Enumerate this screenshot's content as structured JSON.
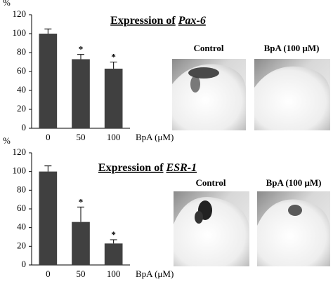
{
  "chart_data": [
    {
      "type": "bar",
      "title": "Expression of",
      "gene": "Pax-6",
      "ylabel": "%",
      "xlabel": "BpA (μM)",
      "categories": [
        "0",
        "50",
        "100"
      ],
      "values": [
        100,
        73,
        63
      ],
      "errors": [
        5,
        5,
        7
      ],
      "significance": [
        null,
        "*",
        "*"
      ],
      "color": "#404040",
      "ylim": [
        0,
        120
      ],
      "yticks": [
        0,
        20,
        40,
        60,
        80,
        100,
        120
      ],
      "panel_labels": [
        "Control",
        "BpA (100 μM)"
      ]
    },
    {
      "type": "bar",
      "title": "Expression of",
      "gene": "ESR-1",
      "ylabel": "%",
      "xlabel": "BpA (μM)",
      "categories": [
        "0",
        "50",
        "100"
      ],
      "values": [
        100,
        46,
        23
      ],
      "errors": [
        6,
        16,
        4
      ],
      "significance": [
        null,
        "*",
        "*"
      ],
      "color": "#404040",
      "ylim": [
        0,
        120
      ],
      "yticks": [
        0,
        20,
        40,
        60,
        80,
        100,
        120
      ],
      "panel_labels": [
        "Control",
        "BpA (100 μM)"
      ]
    }
  ]
}
